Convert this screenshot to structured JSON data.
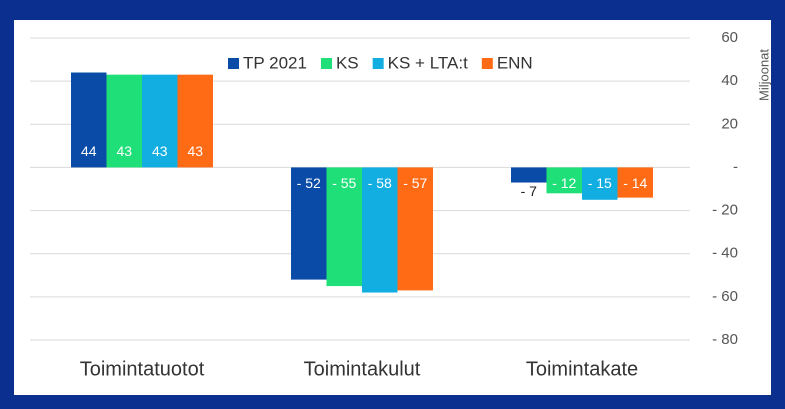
{
  "chart_data": {
    "type": "bar",
    "y_axis_label": "Miljoonat",
    "categories": [
      "Toimintatuotot",
      "Toimintakulut",
      "Toimintakate"
    ],
    "series": [
      {
        "name": "TP 2021",
        "color": "#0a4ba8",
        "values": [
          44,
          -52,
          -7
        ],
        "value_labels": [
          "44",
          "- 52",
          "- 7"
        ]
      },
      {
        "name": "KS",
        "color": "#1fdf78",
        "values": [
          43,
          -55,
          -12
        ],
        "value_labels": [
          "43",
          "- 55",
          "- 12"
        ]
      },
      {
        "name": "KS + LTA:t",
        "color": "#12aee2",
        "values": [
          43,
          -58,
          -15
        ],
        "value_labels": [
          "43",
          "- 58",
          "- 15"
        ]
      },
      {
        "name": "ENN",
        "color": "#ff6a14",
        "values": [
          43,
          -57,
          -14
        ],
        "value_labels": [
          "43",
          "- 57",
          "- 14"
        ]
      }
    ],
    "ylim": [
      -80,
      60
    ],
    "yticks": [
      60,
      40,
      20,
      {
        "value": 0,
        "label": "-"
      },
      {
        "value": -20,
        "label": "- 20"
      },
      {
        "value": -40,
        "label": "- 40"
      },
      {
        "value": -60,
        "label": "- 60"
      },
      {
        "value": -80,
        "label": "- 80"
      }
    ],
    "grid": true,
    "legend": "top"
  }
}
